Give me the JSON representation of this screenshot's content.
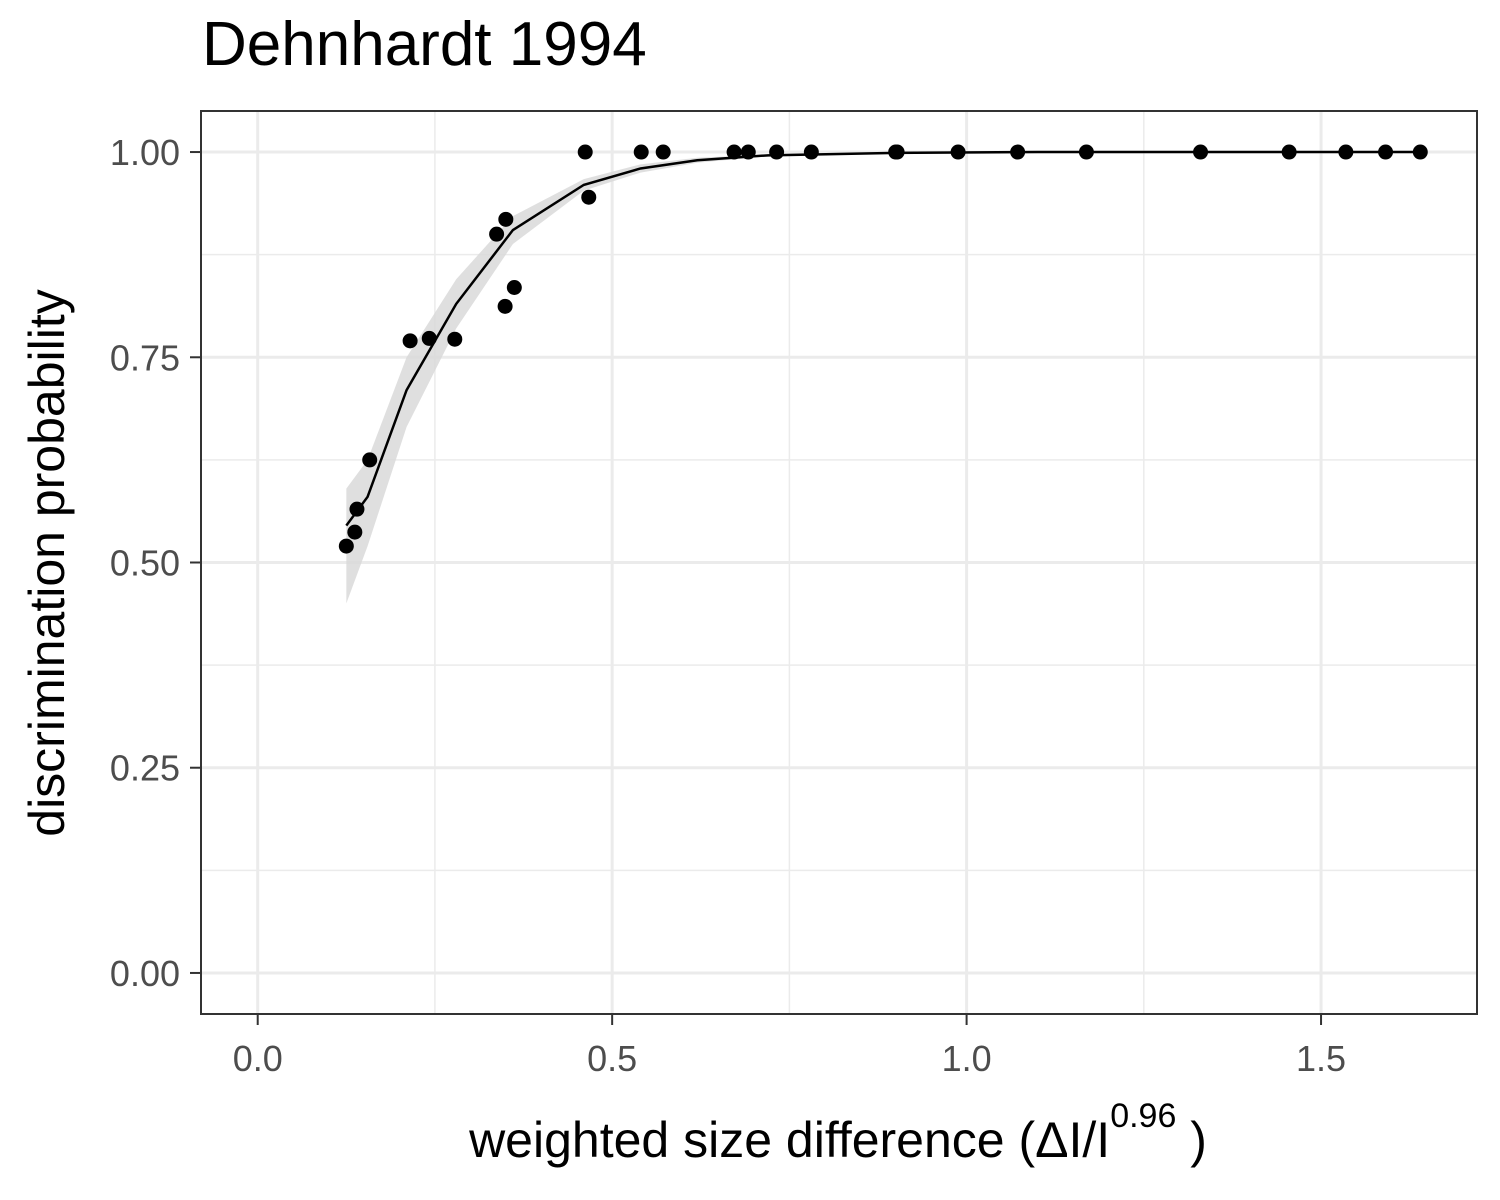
{
  "chart_data": {
    "type": "scatter",
    "title": "Dehnhardt 1994",
    "xlabel": "weighted  size  difference (ΔI/I",
    "xlabel_superscript": "0.96",
    "xlabel_suffix": " )",
    "ylabel": "discrimination probability",
    "xlim": [
      -0.08,
      1.72
    ],
    "ylim": [
      -0.05,
      1.05
    ],
    "x_ticks": [
      0.0,
      0.5,
      1.0,
      1.5
    ],
    "x_tick_labels": [
      "0.0",
      "0.5",
      "1.0",
      "1.5"
    ],
    "y_ticks": [
      0.0,
      0.25,
      0.5,
      0.75,
      1.0
    ],
    "y_tick_labels": [
      "0.00",
      "0.25",
      "0.50",
      "0.75",
      "1.00"
    ],
    "grid": true,
    "points": {
      "x": [
        0.125,
        0.137,
        0.14,
        0.158,
        0.215,
        0.242,
        0.278,
        0.337,
        0.349,
        0.35,
        0.362,
        0.462,
        0.467,
        0.541,
        0.572,
        0.672,
        0.692,
        0.732,
        0.781,
        0.9,
        0.902,
        0.988,
        1.072,
        1.169,
        1.33,
        1.455,
        1.535,
        1.591,
        1.64
      ],
      "y": [
        0.52,
        0.537,
        0.565,
        0.625,
        0.77,
        0.773,
        0.772,
        0.9,
        0.812,
        0.918,
        0.835,
        1.0,
        0.945,
        1.0,
        1.0,
        1.0,
        1.0,
        1.0,
        1.0,
        1.0,
        1.0,
        1.0,
        1.0,
        1.0,
        1.0,
        1.0,
        1.0,
        1.0,
        1.0
      ]
    },
    "fit_line": {
      "x": [
        0.125,
        0.155,
        0.21,
        0.28,
        0.36,
        0.46,
        0.54,
        0.62,
        0.72,
        0.9,
        1.1,
        1.4,
        1.64
      ],
      "y": [
        0.545,
        0.58,
        0.71,
        0.815,
        0.905,
        0.96,
        0.98,
        0.99,
        0.996,
        0.999,
        1.0,
        1.0,
        1.0
      ],
      "band_lower": [
        0.45,
        0.52,
        0.665,
        0.785,
        0.888,
        0.953,
        0.975,
        0.987,
        0.995,
        0.999,
        1.0,
        1.0,
        1.0
      ],
      "band_upper": [
        0.59,
        0.625,
        0.75,
        0.845,
        0.922,
        0.967,
        0.985,
        0.993,
        0.997,
        0.999,
        1.0,
        1.0,
        1.0
      ]
    },
    "colors": {
      "points": "#000000",
      "line": "#000000",
      "band": "#d9d9d9",
      "grid": "#ebebeb",
      "panel_border": "#333333",
      "tick_label": "#4d4d4d"
    }
  }
}
